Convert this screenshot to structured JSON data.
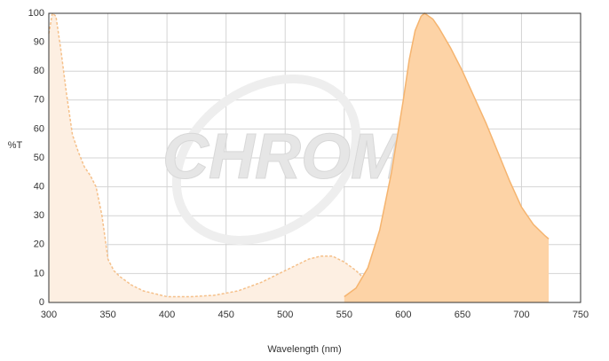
{
  "chart_data": {
    "type": "area",
    "watermark": "CHROMA",
    "x_label": "Wavelength (nm)",
    "y_label": "%T",
    "xlim": [
      300,
      750
    ],
    "xticks": [
      300,
      350,
      400,
      450,
      500,
      550,
      600,
      650,
      700,
      750
    ],
    "ylim": [
      0,
      100
    ],
    "yticks": [
      0,
      10,
      20,
      30,
      40,
      50,
      60,
      70,
      80,
      90,
      100
    ],
    "grid": true,
    "series": [
      {
        "color": "#f5c08a",
        "fill": "#fdefe2",
        "dashed": true,
        "x": [
          300,
          303,
          306,
          310,
          315,
          320,
          325,
          330,
          335,
          340,
          345,
          350,
          355,
          360,
          370,
          380,
          390,
          400,
          420,
          440,
          460,
          480,
          500,
          520,
          530,
          540,
          550,
          560,
          570,
          580,
          590,
          600,
          620,
          650
        ],
        "values": [
          93,
          100,
          99,
          88,
          72,
          58,
          52,
          47,
          44,
          40,
          30,
          15,
          11,
          9,
          6,
          4,
          3,
          2,
          2,
          2.5,
          4,
          7,
          11,
          15,
          16,
          16,
          14,
          11,
          7,
          4,
          2.5,
          1.5,
          1,
          1
        ]
      },
      {
        "color": "#f5b46f",
        "fill": "#fdd3a6",
        "dashed": false,
        "x": [
          550,
          560,
          570,
          580,
          590,
          600,
          605,
          610,
          615,
          618,
          625,
          630,
          640,
          650,
          660,
          670,
          680,
          690,
          700,
          710,
          720,
          723
        ],
        "values": [
          2,
          5,
          12,
          25,
          45,
          70,
          84,
          94,
          99,
          100,
          98,
          95,
          88,
          80,
          71,
          62,
          52,
          42,
          33,
          27,
          23,
          22
        ]
      }
    ]
  }
}
